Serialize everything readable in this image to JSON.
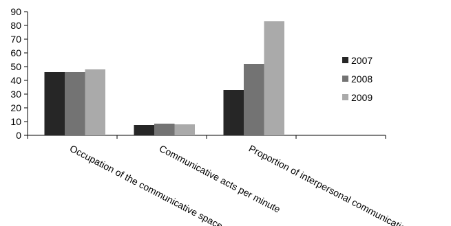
{
  "chart_data": {
    "type": "bar",
    "categories": [
      "Occupation of the communicative space",
      "Communicative acts per minute",
      "Proportion of interpersonal communication",
      ""
    ],
    "series": [
      {
        "name": "2007",
        "values": [
          46,
          7.5,
          33,
          null
        ],
        "color": "#262626"
      },
      {
        "name": "2008",
        "values": [
          46,
          8.5,
          52,
          null
        ],
        "color": "#737373"
      },
      {
        "name": "2009",
        "values": [
          48,
          8,
          83,
          null
        ],
        "color": "#aaaaaa"
      }
    ],
    "yticks": [
      0,
      10,
      20,
      30,
      40,
      50,
      60,
      70,
      80,
      90
    ],
    "ylim": [
      0,
      90
    ],
    "legend_position": "right",
    "grid": false
  }
}
